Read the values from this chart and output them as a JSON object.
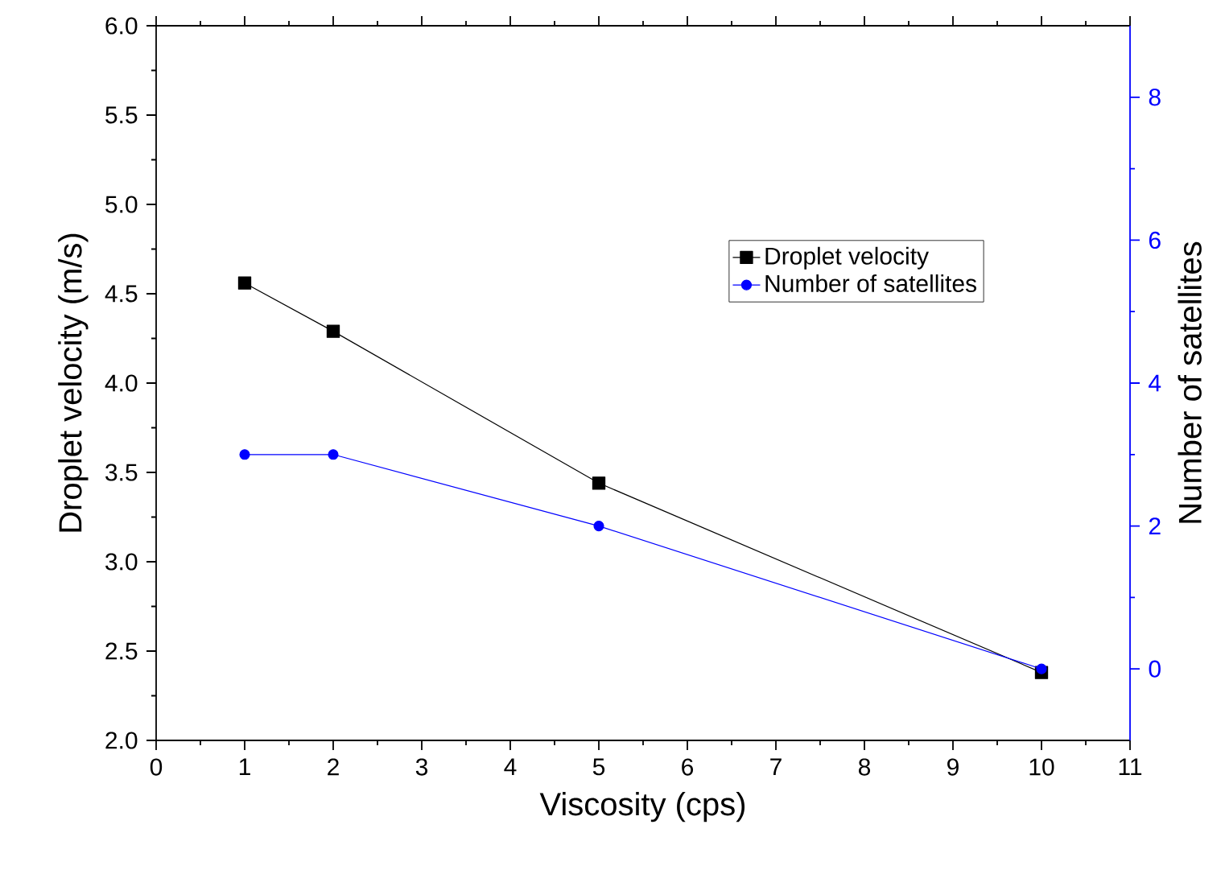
{
  "chart_data": {
    "type": "line",
    "xlabel": "Viscosity (cps)",
    "ylabel": "Droplet velocity (m/s)",
    "y2label": "Number of satellites",
    "x": [
      1,
      2,
      5,
      10
    ],
    "series": [
      {
        "name": "Droplet velocity",
        "color": "#000000",
        "marker": "square",
        "values": [
          4.56,
          4.29,
          3.44,
          2.38
        ]
      },
      {
        "name": "Number of satellites",
        "color": "#0000ff",
        "marker": "circle",
        "axis": "y2",
        "values": [
          3,
          3,
          2,
          0
        ]
      }
    ],
    "xlim": [
      0,
      11
    ],
    "xticks": [
      0,
      1,
      2,
      3,
      4,
      5,
      6,
      7,
      8,
      9,
      10,
      11
    ],
    "ylim": [
      2.0,
      6.0
    ],
    "yticks": [
      {
        "value": 2,
        "label": "2.0"
      },
      {
        "value": 2.5,
        "label": "2.5"
      },
      {
        "value": 3,
        "label": "3.0"
      },
      {
        "value": 3.5,
        "label": "3.5"
      },
      {
        "value": 4,
        "label": "4.0"
      },
      {
        "value": 4.5,
        "label": "4.5"
      },
      {
        "value": 5,
        "label": "5.0"
      },
      {
        "value": 5.5,
        "label": "5.5"
      },
      {
        "value": 6,
        "label": "6.0"
      }
    ],
    "y2lim": [
      -1,
      9
    ],
    "y2ticks": [
      0,
      2,
      4,
      6,
      8
    ],
    "grid": false,
    "legend": "top right",
    "line_style": "solid"
  }
}
